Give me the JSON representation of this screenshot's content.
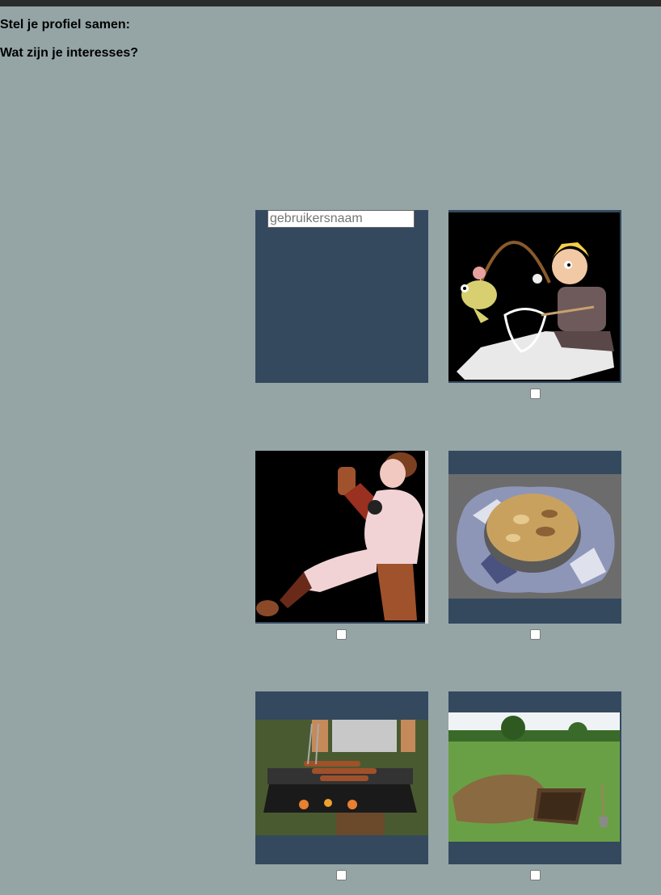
{
  "page": {
    "title": "Stel je profiel samen:",
    "question": "Wat zijn je interesses?"
  },
  "profile": {
    "username_placeholder": "gebruikersnaam"
  },
  "interests": [
    {
      "icon": "fishing-cartoon-image",
      "checked": false
    },
    {
      "icon": "baseball-pitcher-image",
      "checked": false
    },
    {
      "icon": "apple-pie-image",
      "checked": false
    },
    {
      "icon": "barbecue-grill-image",
      "checked": false
    },
    {
      "icon": "dug-hole-garden-image",
      "checked": false
    }
  ],
  "colors": {
    "background": "#95a5a6",
    "tile": "#34495e",
    "topbar": "#2b2b2b"
  }
}
